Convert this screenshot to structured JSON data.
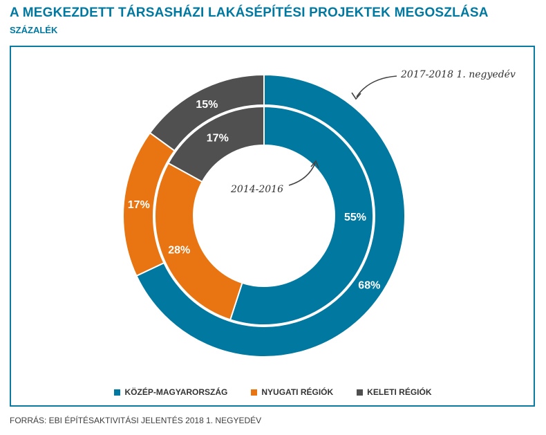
{
  "title": "A MEGKEZDETT TÁRSASHÁZI LAKÁSÉPÍTÉSI PROJEKTEK MEGOSZLÁSA",
  "subtitle": "SZÁZALÉK",
  "source": "FORRÁS: EBI ÉPÍTÉSAKTIVITÁSI JELENTÉS 2018 1. NEGYEDÉV",
  "chart_data": {
    "type": "pie",
    "subtype": "nested-donut",
    "categories": [
      "KÖZÉP-MAGYARORSZÁG",
      "NYUGATI RÉGIÓK",
      "KELETI RÉGIÓK"
    ],
    "colors": [
      "#0078a0",
      "#e87511",
      "#505050"
    ],
    "series": [
      {
        "name": "2017-2018 1. negyedév",
        "ring": "outer",
        "values": [
          68,
          17,
          15
        ],
        "labels": [
          "68%",
          "17%",
          "15%"
        ]
      },
      {
        "name": "2014-2016",
        "ring": "inner",
        "values": [
          55,
          28,
          17
        ],
        "labels": [
          "55%",
          "28%",
          "17%"
        ]
      }
    ],
    "legend_position": "bottom"
  }
}
